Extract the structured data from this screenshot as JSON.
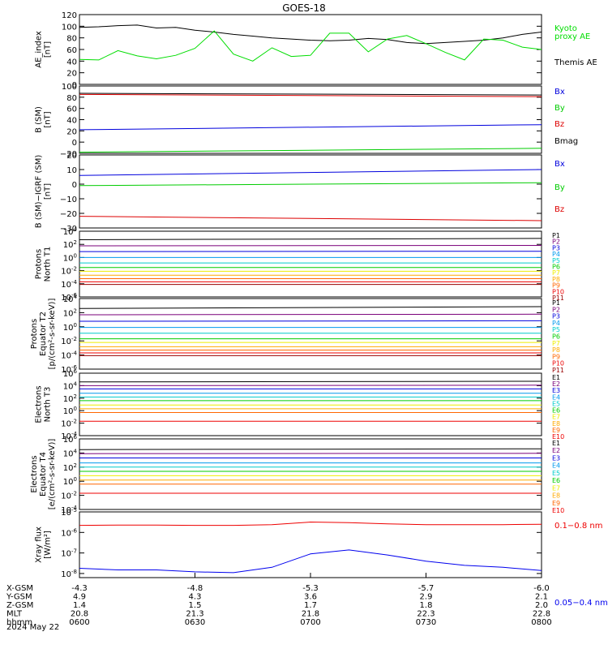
{
  "title": "GOES-18",
  "date_label": "2024 May 22",
  "x_axis": {
    "row_labels": [
      "X-GSM",
      "Y-GSM",
      "Z-GSM",
      "MLT",
      "hhmm"
    ],
    "columns": [
      [
        "-4.3",
        "4.9",
        "1.4",
        "20.8",
        "0600"
      ],
      [
        "-4.8",
        "4.3",
        "1.5",
        "21.3",
        "0630"
      ],
      [
        "-5.3",
        "3.6",
        "1.7",
        "21.8",
        "0700"
      ],
      [
        "-5.7",
        "2.9",
        "1.8",
        "22.3",
        "0730"
      ],
      [
        "-6.0",
        "2.1",
        "2.0",
        "22.8",
        "0800"
      ]
    ]
  },
  "chart_data": [
    {
      "id": "ae",
      "type": "line",
      "ylabel": [
        "AE_index",
        "[nT]"
      ],
      "ylim": [
        0,
        120
      ],
      "yticks": [
        "0",
        "20",
        "40",
        "60",
        "80",
        "100",
        "120"
      ],
      "x": [
        "0600",
        "0605",
        "0610",
        "0615",
        "0620",
        "0625",
        "0630",
        "0635",
        "0640",
        "0645",
        "0650",
        "0655",
        "0700",
        "0705",
        "0710",
        "0715",
        "0720",
        "0725",
        "0730",
        "0735",
        "0740",
        "0745",
        "0750",
        "0755",
        "0800"
      ],
      "series": [
        {
          "name": "Themis AE",
          "color": "#000000",
          "values": [
            98,
            99,
            101,
            102,
            97,
            98,
            93,
            90,
            86,
            83,
            80,
            78,
            76,
            75,
            76,
            79,
            77,
            72,
            70,
            72,
            74,
            76,
            80,
            86,
            90
          ]
        },
        {
          "name": "Kyoto proxy AE",
          "color": "#00dd00",
          "values": [
            43,
            42,
            58,
            49,
            44,
            50,
            62,
            92,
            52,
            40,
            63,
            48,
            50,
            88,
            88,
            56,
            78,
            84,
            70,
            55,
            42,
            78,
            76,
            64,
            60
          ]
        }
      ],
      "legend": [
        {
          "text": "Kyoto",
          "color": "#00dd00"
        },
        {
          "text": "proxy AE",
          "color": "#00dd00"
        },
        {
          "text": "Themis AE",
          "color": "#000000"
        }
      ]
    },
    {
      "id": "bsm",
      "type": "line",
      "ylabel": [
        "B (SM)",
        "[nT]"
      ],
      "ylim": [
        -20,
        100
      ],
      "yticks": [
        "−20",
        "0",
        "20",
        "40",
        "60",
        "80",
        "100"
      ],
      "x": [
        "0600",
        "0800"
      ],
      "series": [
        {
          "name": "Bx",
          "color": "#0000dd",
          "values": [
            22,
            31
          ]
        },
        {
          "name": "By",
          "color": "#00cc00",
          "values": [
            -18,
            -11
          ]
        },
        {
          "name": "Bz",
          "color": "#dd0000",
          "values": [
            85,
            81
          ]
        },
        {
          "name": "Bmag",
          "color": "#000000",
          "values": [
            87,
            84
          ]
        }
      ],
      "legend": [
        {
          "text": "Bx",
          "color": "#0000dd"
        },
        {
          "text": "By",
          "color": "#00cc00"
        },
        {
          "text": "Bz",
          "color": "#dd0000"
        },
        {
          "text": "Bmag",
          "color": "#000000"
        }
      ]
    },
    {
      "id": "bres",
      "type": "line",
      "ylabel": [
        "B (SM)−IGRF (SM)",
        "[nT]"
      ],
      "ylim": [
        -30,
        20
      ],
      "yticks": [
        "−30",
        "−20",
        "−10",
        "0",
        "10",
        "20"
      ],
      "x": [
        "0600",
        "0800"
      ],
      "series": [
        {
          "name": "Bx",
          "color": "#0000dd",
          "values": [
            6,
            10
          ]
        },
        {
          "name": "By",
          "color": "#00cc00",
          "values": [
            -1,
            1
          ]
        },
        {
          "name": "Bz",
          "color": "#dd0000",
          "values": [
            -22,
            -25
          ]
        }
      ],
      "legend": [
        {
          "text": "Bx",
          "color": "#0000dd"
        },
        {
          "text": "By",
          "color": "#00cc00"
        },
        {
          "text": "Bz",
          "color": "#dd0000"
        }
      ]
    },
    {
      "id": "pnorth",
      "type": "line",
      "log": true,
      "ylabel": [
        "Protons",
        "North T1"
      ],
      "ylim_exp": [
        -6,
        4
      ],
      "yticks": [
        "10^-6",
        "10^-4",
        "10^-2",
        "10^0",
        "10^2",
        "10^4"
      ],
      "x": [
        "0600",
        "0800"
      ],
      "series": [
        {
          "name": "P1",
          "color": "#000000",
          "values": [
            500,
            800
          ]
        },
        {
          "name": "P2",
          "color": "#7a007a",
          "values": [
            60,
            70
          ]
        },
        {
          "name": "P3",
          "color": "#0000dd",
          "values": [
            8,
            9
          ]
        },
        {
          "name": "P4",
          "color": "#0099ee",
          "values": [
            1,
            1
          ]
        },
        {
          "name": "P5",
          "color": "#00cccc",
          "values": [
            0.15,
            0.15
          ]
        },
        {
          "name": "P6",
          "color": "#00cc00",
          "values": [
            0.03,
            0.03
          ]
        },
        {
          "name": "P7",
          "color": "#eeee00",
          "values": [
            0.008,
            0.008
          ]
        },
        {
          "name": "P8",
          "color": "#ffaa00",
          "values": [
            0.002,
            0.002
          ]
        },
        {
          "name": "P9",
          "color": "#ff6600",
          "values": [
            0.0006,
            0.0006
          ]
        },
        {
          "name": "P10",
          "color": "#ee0000",
          "values": [
            0.0002,
            0.0002
          ]
        },
        {
          "name": "P11",
          "color": "#990000",
          "values": [
            8e-05,
            8e-05
          ]
        }
      ]
    },
    {
      "id": "pequator",
      "type": "line",
      "log": true,
      "ylabel": [
        "Protons",
        "Equator T2",
        "[p/(cm²-s-sr-keV)]"
      ],
      "ylim_exp": [
        -6,
        4
      ],
      "yticks": [
        "10^-6",
        "10^-4",
        "10^-2",
        "10^0",
        "10^2",
        "10^4"
      ],
      "x": [
        "0600",
        "0800"
      ],
      "series": [
        {
          "name": "P1",
          "color": "#000000",
          "values": [
            400,
            700
          ]
        },
        {
          "name": "P2",
          "color": "#7a007a",
          "values": [
            50,
            60
          ]
        },
        {
          "name": "P3",
          "color": "#0000dd",
          "values": [
            6,
            7
          ]
        },
        {
          "name": "P4",
          "color": "#0099ee",
          "values": [
            0.8,
            0.8
          ]
        },
        {
          "name": "P5",
          "color": "#00cccc",
          "values": [
            0.12,
            0.12
          ]
        },
        {
          "name": "P6",
          "color": "#00cc00",
          "values": [
            0.02,
            0.02
          ]
        },
        {
          "name": "P7",
          "color": "#eeee00",
          "values": [
            0.006,
            0.006
          ]
        },
        {
          "name": "P8",
          "color": "#ffaa00",
          "values": [
            0.0015,
            0.0015
          ]
        },
        {
          "name": "P9",
          "color": "#ff6600",
          "values": [
            0.0005,
            0.0005
          ]
        },
        {
          "name": "P10",
          "color": "#ee0000",
          "values": [
            0.0002,
            0.0002
          ]
        },
        {
          "name": "P11",
          "color": "#990000",
          "values": [
            8e-05,
            8e-05
          ]
        }
      ]
    },
    {
      "id": "enorth",
      "type": "line",
      "log": true,
      "ylabel": [
        "Electrons",
        "North T3"
      ],
      "ylim_exp": [
        -4,
        6
      ],
      "yticks": [
        "10^-4",
        "10^-2",
        "10^0",
        "10^2",
        "10^4",
        "10^6"
      ],
      "x": [
        "0600",
        "0800"
      ],
      "series": [
        {
          "name": "E1",
          "color": "#000000",
          "values": [
            40000,
            50000
          ]
        },
        {
          "name": "E2",
          "color": "#7a007a",
          "values": [
            10000,
            12000
          ]
        },
        {
          "name": "E3",
          "color": "#0000dd",
          "values": [
            3000,
            3000
          ]
        },
        {
          "name": "E4",
          "color": "#0099ee",
          "values": [
            600,
            600
          ]
        },
        {
          "name": "E5",
          "color": "#00cccc",
          "values": [
            150,
            150
          ]
        },
        {
          "name": "E6",
          "color": "#00cc00",
          "values": [
            40,
            40
          ]
        },
        {
          "name": "E7",
          "color": "#eeee00",
          "values": [
            8,
            8
          ]
        },
        {
          "name": "E8",
          "color": "#ffaa00",
          "values": [
            2,
            2
          ]
        },
        {
          "name": "E9",
          "color": "#ff6600",
          "values": [
            0.5,
            0.5
          ]
        },
        {
          "name": "E10",
          "color": "#ee0000",
          "values": [
            0.02,
            0.02
          ]
        }
      ]
    },
    {
      "id": "eequator",
      "type": "line",
      "log": true,
      "ylabel": [
        "Electrons",
        "Equator T4",
        "[e/(cm²-s-sr-keV)]"
      ],
      "ylim_exp": [
        -4,
        6
      ],
      "yticks": [
        "10^-4",
        "10^-2",
        "10^0",
        "10^2",
        "10^4",
        "10^6"
      ],
      "x": [
        "0600",
        "0800"
      ],
      "series": [
        {
          "name": "E1",
          "color": "#000000",
          "values": [
            30000,
            40000
          ]
        },
        {
          "name": "E2",
          "color": "#7a007a",
          "values": [
            8000,
            9000
          ]
        },
        {
          "name": "E3",
          "color": "#0000dd",
          "values": [
            2000,
            2000
          ]
        },
        {
          "name": "E4",
          "color": "#0099ee",
          "values": [
            400,
            400
          ]
        },
        {
          "name": "E5",
          "color": "#00cccc",
          "values": [
            100,
            100
          ]
        },
        {
          "name": "E6",
          "color": "#00cc00",
          "values": [
            25,
            25
          ]
        },
        {
          "name": "E7",
          "color": "#eeee00",
          "values": [
            6,
            6
          ]
        },
        {
          "name": "E8",
          "color": "#ffaa00",
          "values": [
            1.5,
            1.5
          ]
        },
        {
          "name": "E9",
          "color": "#ff6600",
          "values": [
            0.4,
            0.4
          ]
        },
        {
          "name": "E10",
          "color": "#ee0000",
          "values": [
            0.02,
            0.02
          ]
        }
      ]
    },
    {
      "id": "xray",
      "type": "line",
      "log": true,
      "ylabel": [
        "Xray flux",
        "[W/m²]"
      ],
      "ylim_exp": [
        -8.2,
        -5
      ],
      "yticks": [
        "10^-8",
        "10^-7",
        "10^-6",
        "10^-5"
      ],
      "x": [
        "0600",
        "0610",
        "0620",
        "0630",
        "0640",
        "0650",
        "0700",
        "0710",
        "0720",
        "0730",
        "0740",
        "0750",
        "0800"
      ],
      "series": [
        {
          "name": "0.1–0.8 nm",
          "color": "#ee0000",
          "values": [
            2.2e-06,
            2.3e-06,
            2.3e-06,
            2.2e-06,
            2.2e-06,
            2.4e-06,
            3.2e-06,
            3e-06,
            2.6e-06,
            2.4e-06,
            2.4e-06,
            2.4e-06,
            2.5e-06
          ]
        },
        {
          "name": "0.05–0.4 nm",
          "color": "#0000ee",
          "values": [
            1.8e-08,
            1.5e-08,
            1.5e-08,
            1.2e-08,
            1.1e-08,
            2e-08,
            9e-08,
            1.4e-07,
            8e-08,
            4e-08,
            2.5e-08,
            2e-08,
            1.4e-08
          ]
        }
      ],
      "legend": [
        {
          "text": "0.1−0.8 nm",
          "color": "#ee0000"
        },
        {
          "text": "0.05−0.4 nm",
          "color": "#0000ee"
        }
      ]
    }
  ]
}
